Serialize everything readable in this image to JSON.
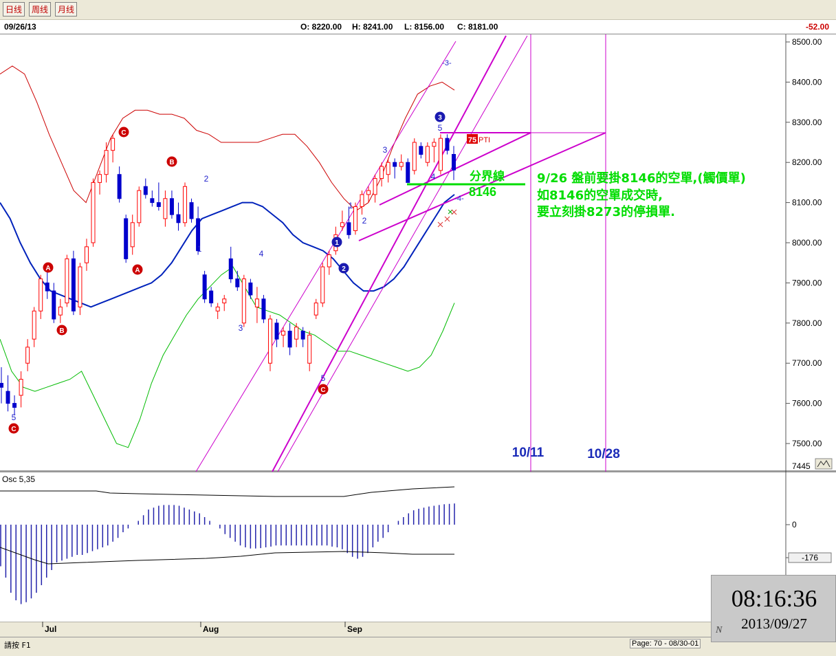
{
  "tabs": [
    {
      "label": "日线"
    },
    {
      "label": "周线"
    },
    {
      "label": "月线"
    }
  ],
  "header": {
    "date": "09/26/13",
    "open": "O: 8220.00",
    "high": "H: 8241.00",
    "low": "L: 8156.00",
    "close": "C: 8181.00",
    "change": "-52.00"
  },
  "colors": {
    "up_candle": "#ff0000",
    "down_candle": "#0000cc",
    "ma_line": "#0022bb",
    "upper_band": "#cc0000",
    "lower_band": "#00bb00",
    "trend_lines": "#cc00cc",
    "annotation_green": "#00dd00",
    "wave_label": "#2222cc",
    "marker_red": "#cc0000"
  },
  "annotations": {
    "divider_label": "分界線",
    "divider_value": "8146",
    "note_line1": "9/26 盤前要掛8146的空單,(觸價單)",
    "note_line2": "如8146的空單成交時,",
    "note_line3": "要立刻掛8273的停損單.",
    "date_1011": "10/11",
    "date_1028": "10/28",
    "pti_value": "75",
    "pti_text": "PTI",
    "channel_label_top": "-3-",
    "channel_label_bottom": "-4-"
  },
  "wave_labels": [
    {
      "text": "5"
    },
    {
      "text": "2"
    },
    {
      "text": "1"
    },
    {
      "text": "3"
    },
    {
      "text": "4"
    },
    {
      "text": "5"
    },
    {
      "text": "1"
    },
    {
      "text": "2"
    },
    {
      "text": "3"
    },
    {
      "text": "4"
    },
    {
      "text": "5"
    }
  ],
  "markers": [
    {
      "text": "C"
    },
    {
      "text": "A"
    },
    {
      "text": "B"
    },
    {
      "text": "C"
    },
    {
      "text": "A"
    },
    {
      "text": "B"
    },
    {
      "text": "C"
    }
  ],
  "wave_circles": [
    {
      "text": "1"
    },
    {
      "text": "2"
    },
    {
      "text": "3"
    }
  ],
  "chart_data": [
    {
      "type": "candlestick",
      "title": "",
      "y_axis_ticks": [
        "8500.00",
        "8400.00",
        "8300.00",
        "8200.00",
        "8100.00",
        "8000.00",
        "7900.00",
        "7800.00",
        "7700.00",
        "7600.00",
        "7500.00"
      ],
      "y_axis_min_label": "7445",
      "ylim": [
        7445,
        8520
      ],
      "x_axis_ticks": [
        "Jul",
        "Aug",
        "Sep"
      ],
      "last_bar": {
        "date": "09/26/13",
        "open": 8220,
        "high": 8241,
        "low": 8156,
        "close": 8181,
        "change": -52
      },
      "divider_level": 8146,
      "stop_level": 8273,
      "target_dates": [
        "10/11",
        "10/28"
      ],
      "candles": [
        {
          "o": 7650,
          "h": 7690,
          "l": 7600,
          "c": 7640
        },
        {
          "o": 7630,
          "h": 7670,
          "l": 7580,
          "c": 7600
        },
        {
          "o": 7600,
          "h": 7620,
          "l": 7570,
          "c": 7590
        },
        {
          "o": 7620,
          "h": 7680,
          "l": 7590,
          "c": 7660
        },
        {
          "o": 7700,
          "h": 7760,
          "l": 7680,
          "c": 7740
        },
        {
          "o": 7760,
          "h": 7840,
          "l": 7740,
          "c": 7830
        },
        {
          "o": 7830,
          "h": 7920,
          "l": 7810,
          "c": 7910
        },
        {
          "o": 7900,
          "h": 7930,
          "l": 7860,
          "c": 7880
        },
        {
          "o": 7880,
          "h": 7900,
          "l": 7800,
          "c": 7810
        },
        {
          "o": 7820,
          "h": 7860,
          "l": 7800,
          "c": 7840
        },
        {
          "o": 7850,
          "h": 7970,
          "l": 7840,
          "c": 7960
        },
        {
          "o": 7960,
          "h": 7980,
          "l": 7820,
          "c": 7830
        },
        {
          "o": 7840,
          "h": 7950,
          "l": 7820,
          "c": 7940
        },
        {
          "o": 7950,
          "h": 8010,
          "l": 7930,
          "c": 7990
        },
        {
          "o": 8000,
          "h": 8160,
          "l": 7990,
          "c": 8150
        },
        {
          "o": 8150,
          "h": 8180,
          "l": 8120,
          "c": 8170
        },
        {
          "o": 8170,
          "h": 8250,
          "l": 8150,
          "c": 8230
        },
        {
          "o": 8230,
          "h": 8270,
          "l": 8200,
          "c": 8260
        },
        {
          "o": 8170,
          "h": 8190,
          "l": 8100,
          "c": 8110
        },
        {
          "o": 8060,
          "h": 8070,
          "l": 7950,
          "c": 7960
        },
        {
          "o": 7990,
          "h": 8070,
          "l": 7970,
          "c": 8050
        },
        {
          "o": 8050,
          "h": 8140,
          "l": 8040,
          "c": 8130
        },
        {
          "o": 8140,
          "h": 8160,
          "l": 8110,
          "c": 8120
        },
        {
          "o": 8110,
          "h": 8130,
          "l": 8090,
          "c": 8100
        },
        {
          "o": 8100,
          "h": 8150,
          "l": 8080,
          "c": 8090
        },
        {
          "o": 8060,
          "h": 8130,
          "l": 8040,
          "c": 8110
        },
        {
          "o": 8110,
          "h": 8130,
          "l": 8060,
          "c": 8070
        },
        {
          "o": 8070,
          "h": 8100,
          "l": 8030,
          "c": 8050
        },
        {
          "o": 8050,
          "h": 8150,
          "l": 8040,
          "c": 8140
        },
        {
          "o": 8100,
          "h": 8110,
          "l": 8050,
          "c": 8060
        },
        {
          "o": 8060,
          "h": 8090,
          "l": 7970,
          "c": 7980
        },
        {
          "o": 7920,
          "h": 7930,
          "l": 7850,
          "c": 7860
        },
        {
          "o": 7880,
          "h": 7890,
          "l": 7840,
          "c": 7850
        },
        {
          "o": 7830,
          "h": 7850,
          "l": 7810,
          "c": 7840
        },
        {
          "o": 7850,
          "h": 7870,
          "l": 7830,
          "c": 7860
        },
        {
          "o": 7960,
          "h": 7990,
          "l": 7900,
          "c": 7910
        },
        {
          "o": 7910,
          "h": 7930,
          "l": 7880,
          "c": 7890
        },
        {
          "o": 7800,
          "h": 7920,
          "l": 7790,
          "c": 7910
        },
        {
          "o": 7900,
          "h": 7910,
          "l": 7860,
          "c": 7870
        },
        {
          "o": 7840,
          "h": 7890,
          "l": 7800,
          "c": 7860
        },
        {
          "o": 7860,
          "h": 7870,
          "l": 7800,
          "c": 7810
        },
        {
          "o": 7700,
          "h": 7820,
          "l": 7680,
          "c": 7810
        },
        {
          "o": 7800,
          "h": 7810,
          "l": 7740,
          "c": 7760
        },
        {
          "o": 7770,
          "h": 7790,
          "l": 7740,
          "c": 7780
        },
        {
          "o": 7780,
          "h": 7800,
          "l": 7720,
          "c": 7740
        },
        {
          "o": 7760,
          "h": 7800,
          "l": 7740,
          "c": 7790
        },
        {
          "o": 7780,
          "h": 7790,
          "l": 7740,
          "c": 7760
        },
        {
          "o": 7700,
          "h": 7780,
          "l": 7680,
          "c": 7770
        },
        {
          "o": 7820,
          "h": 7860,
          "l": 7810,
          "c": 7850
        },
        {
          "o": 7850,
          "h": 7950,
          "l": 7840,
          "c": 7940
        },
        {
          "o": 7940,
          "h": 7980,
          "l": 7920,
          "c": 7970
        },
        {
          "o": 7980,
          "h": 8040,
          "l": 7970,
          "c": 8020
        },
        {
          "o": 8040,
          "h": 8080,
          "l": 8030,
          "c": 8050
        },
        {
          "o": 8050,
          "h": 8090,
          "l": 8010,
          "c": 8020
        },
        {
          "o": 8030,
          "h": 8100,
          "l": 8020,
          "c": 8090
        },
        {
          "o": 8090,
          "h": 8130,
          "l": 8070,
          "c": 8120
        },
        {
          "o": 8120,
          "h": 8140,
          "l": 8100,
          "c": 8130
        },
        {
          "o": 8120,
          "h": 8170,
          "l": 8100,
          "c": 8160
        },
        {
          "o": 8160,
          "h": 8200,
          "l": 8140,
          "c": 8190
        },
        {
          "o": 8170,
          "h": 8210,
          "l": 8150,
          "c": 8200
        },
        {
          "o": 8200,
          "h": 8210,
          "l": 8160,
          "c": 8190
        },
        {
          "o": 8190,
          "h": 8220,
          "l": 8180,
          "c": 8200
        },
        {
          "o": 8200,
          "h": 8210,
          "l": 8150,
          "c": 8150
        },
        {
          "o": 8180,
          "h": 8260,
          "l": 8170,
          "c": 8250
        },
        {
          "o": 8240,
          "h": 8250,
          "l": 8210,
          "c": 8220
        },
        {
          "o": 8200,
          "h": 8250,
          "l": 8190,
          "c": 8240
        },
        {
          "o": 8240,
          "h": 8260,
          "l": 8200,
          "c": 8250
        },
        {
          "o": 8180,
          "h": 8270,
          "l": 8170,
          "c": 8260
        },
        {
          "o": 8260,
          "h": 8270,
          "l": 8220,
          "c": 8230
        },
        {
          "o": 8220,
          "h": 8241,
          "l": 8156,
          "c": 8181
        }
      ],
      "ma": [
        8100,
        8060,
        8000,
        7950,
        7910,
        7880,
        7870,
        7860,
        7850,
        7840,
        7850,
        7860,
        7870,
        7880,
        7890,
        7900,
        7920,
        7950,
        7990,
        8030,
        8060,
        8070,
        8080,
        8090,
        8100,
        8100,
        8090,
        8070,
        8050,
        8020,
        8000,
        7990,
        7980,
        7960,
        7930,
        7900,
        7880,
        7880,
        7890,
        7910,
        7940,
        7980,
        8020,
        8060,
        8100,
        8120
      ],
      "upper_band": [
        8420,
        8440,
        8420,
        8350,
        8270,
        8200,
        8130,
        8100,
        8180,
        8260,
        8310,
        8330,
        8330,
        8320,
        8320,
        8310,
        8280,
        8270,
        8250,
        8250,
        8250,
        8250,
        8260,
        8270,
        8270,
        8240,
        8200,
        8150,
        8110,
        8080,
        8100,
        8160,
        8240,
        8310,
        8370,
        8390,
        8400,
        8380
      ],
      "lower_band": [
        7760,
        7680,
        7640,
        7630,
        7640,
        7650,
        7660,
        7680,
        7620,
        7560,
        7500,
        7490,
        7560,
        7650,
        7720,
        7770,
        7820,
        7860,
        7890,
        7920,
        7940,
        7890,
        7840,
        7830,
        7820,
        7800,
        7780,
        7770,
        7750,
        7730,
        7730,
        7720,
        7710,
        7700,
        7690,
        7680,
        7690,
        7720,
        7780,
        7850
      ]
    },
    {
      "type": "bar",
      "title": "Osc 5,35",
      "y_axis_ticks": [
        "0",
        "-176"
      ],
      "values": [
        -110,
        -140,
        -180,
        -200,
        -210,
        -205,
        -195,
        -180,
        -160,
        -140,
        -120,
        -100,
        -95,
        -90,
        -85,
        -80,
        -80,
        -75,
        -70,
        -65,
        -60,
        -55,
        -45,
        -35,
        -20,
        -10,
        0,
        10,
        25,
        40,
        45,
        50,
        52,
        52,
        52,
        50,
        45,
        40,
        35,
        30,
        20,
        10,
        0,
        -10,
        -25,
        -35,
        -45,
        -55,
        -60,
        -63,
        -63,
        -62,
        -60,
        -58,
        -55,
        -55,
        -55,
        -55,
        -55,
        -55,
        -55,
        -55,
        -55,
        -55,
        -55,
        -58,
        -60,
        -65,
        -75,
        -85,
        -90,
        -85,
        -75,
        -60,
        -45,
        -35,
        -20,
        0,
        10,
        20,
        30,
        38,
        42,
        45,
        48,
        50,
        52,
        54,
        55,
        56
      ]
    }
  ],
  "status": {
    "hint": "請按 F1",
    "page_info": "Page: 70 - 08/30-01"
  },
  "clock": {
    "time": "08:16:36",
    "date": "2013/09/27",
    "logo_letter": "N"
  }
}
